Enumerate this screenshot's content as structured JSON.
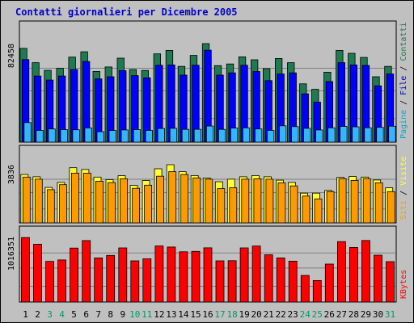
{
  "title": "Contatti giornalieri per Dicembre 2005",
  "colors": {
    "background": "#c0c0c0",
    "plot_background": "#c0c0c0",
    "pages": "#1f7a52",
    "files": "#0000ff",
    "hits": "#33b5ff",
    "visits": "#ffff33",
    "sites": "#ff9900",
    "kbytes": "#ff0000",
    "title": "#0000cc",
    "weekend_label": "#009966",
    "weekday_label": "#000000"
  },
  "chart_data": [
    {
      "type": "bar",
      "name": "Contatti",
      "y_tick_label": "82458",
      "ylim": [
        0,
        82458
      ],
      "right_label": [
        {
          "text": "Pagine",
          "color": "#00aacc"
        },
        {
          "text": " / ",
          "color": "#000000"
        },
        {
          "text": "File",
          "color": "#0000cc"
        },
        {
          "text": " / ",
          "color": "#000000"
        },
        {
          "text": "Contatti",
          "color": "#1f7a52"
        }
      ],
      "categories": [
        "1",
        "2",
        "3",
        "4",
        "5",
        "6",
        "7",
        "8",
        "9",
        "10",
        "11",
        "12",
        "13",
        "14",
        "15",
        "16",
        "17",
        "18",
        "19",
        "20",
        "21",
        "22",
        "23",
        "24",
        "25",
        "26",
        "27",
        "28",
        "29",
        "30",
        "31"
      ],
      "series": [
        {
          "name": "Contatti",
          "color": "#1f7a52",
          "values": [
            78460,
            66500,
            60060,
            61820,
            71140,
            75610,
            59190,
            62920,
            70270,
            60780,
            60000,
            73860,
            76760,
            63400,
            72590,
            82458,
            63980,
            65400,
            71340,
            68930,
            61510,
            69990,
            66500,
            48820,
            44180,
            58500,
            76760,
            74370,
            70890,
            54780,
            63400
          ]
        },
        {
          "name": "File",
          "color": "#0000ff",
          "values": [
            69090,
            55350,
            51960,
            55350,
            60770,
            67540,
            52890,
            54740,
            59810,
            55660,
            53810,
            64360,
            64640,
            56130,
            64360,
            76990,
            56130,
            57980,
            64360,
            59170,
            51500,
            57040,
            57980,
            40400,
            33470,
            50720,
            66500,
            64640,
            64190,
            47080,
            57040
          ]
        },
        {
          "name": "Pagine",
          "color": "#33b5ff",
          "values": [
            16380,
            9820,
            11010,
            10450,
            10340,
            11870,
            8720,
            9710,
            10230,
            10450,
            9820,
            11400,
            11530,
            10670,
            10780,
            13430,
            10670,
            11740,
            11980,
            11010,
            9820,
            13640,
            13010,
            11560,
            10230,
            11980,
            13140,
            12770,
            12000,
            12400,
            13330
          ]
        }
      ]
    },
    {
      "type": "bar",
      "name": "Visite",
      "y_tick_label": "3836",
      "ylim": [
        0,
        3836
      ],
      "right_label": [
        {
          "text": "Siti",
          "color": "#ff9900"
        },
        {
          "text": " / ",
          "color": "#000000"
        },
        {
          "text": "Visite",
          "color": "#ffff33"
        }
      ],
      "categories": [
        "1",
        "2",
        "3",
        "4",
        "5",
        "6",
        "7",
        "8",
        "9",
        "10",
        "11",
        "12",
        "13",
        "14",
        "15",
        "16",
        "17",
        "18",
        "19",
        "20",
        "21",
        "22",
        "23",
        "24",
        "25",
        "26",
        "27",
        "28",
        "29",
        "30",
        "31"
      ],
      "series": [
        {
          "name": "Visite",
          "color": "#ffff33",
          "values": [
            3190,
            3040,
            2340,
            2670,
            3640,
            3520,
            3020,
            2850,
            3110,
            2470,
            2790,
            3570,
            3836,
            3380,
            3120,
            2960,
            2710,
            2880,
            3040,
            3120,
            3040,
            2820,
            2670,
            1960,
            1960,
            2140,
            3000,
            3060,
            3020,
            2830,
            2310
          ]
        },
        {
          "name": "Siti",
          "color": "#ff9900",
          "values": [
            3020,
            2880,
            2190,
            2520,
            3280,
            3280,
            2750,
            2660,
            2910,
            2280,
            2490,
            3080,
            3380,
            3190,
            2970,
            2880,
            2260,
            2320,
            2880,
            2910,
            2880,
            2640,
            2440,
            1770,
            1580,
            2060,
            2920,
            2800,
            2920,
            2640,
            2060
          ]
        }
      ]
    },
    {
      "type": "bar",
      "name": "KBytes",
      "y_tick_label": "1016351",
      "ylim": [
        0,
        1016351
      ],
      "right_label": [
        {
          "text": "KBytes",
          "color": "#ff0000"
        }
      ],
      "categories": [
        "1",
        "2",
        "3",
        "4",
        "5",
        "6",
        "7",
        "8",
        "9",
        "10",
        "11",
        "12",
        "13",
        "14",
        "15",
        "16",
        "17",
        "18",
        "19",
        "20",
        "21",
        "22",
        "23",
        "24",
        "25",
        "26",
        "27",
        "28",
        "29",
        "30",
        "31"
      ],
      "series": [
        {
          "name": "KBytes",
          "color": "#ff0000",
          "values": [
            1001700,
            898550,
            630720,
            654170,
            837900,
            955000,
            685500,
            724600,
            840400,
            640500,
            671000,
            870270,
            854100,
            780000,
            786350,
            841700,
            640540,
            642500,
            840400,
            869500,
            734500,
            685000,
            634300,
            413050,
            333950,
            589900,
            938950,
            848550,
            956200,
            727900,
            627500
          ]
        }
      ]
    }
  ],
  "x_axis": {
    "labels": [
      "1",
      "2",
      "3",
      "4",
      "5",
      "6",
      "7",
      "8",
      "9",
      "10",
      "11",
      "12",
      "13",
      "14",
      "15",
      "16",
      "17",
      "18",
      "19",
      "20",
      "21",
      "22",
      "23",
      "24",
      "25",
      "26",
      "27",
      "28",
      "29",
      "30",
      "31"
    ],
    "weekend": [
      false,
      false,
      true,
      true,
      false,
      false,
      false,
      false,
      false,
      true,
      true,
      false,
      false,
      false,
      false,
      false,
      true,
      true,
      false,
      false,
      false,
      false,
      false,
      true,
      true,
      false,
      false,
      false,
      false,
      false,
      true
    ]
  }
}
